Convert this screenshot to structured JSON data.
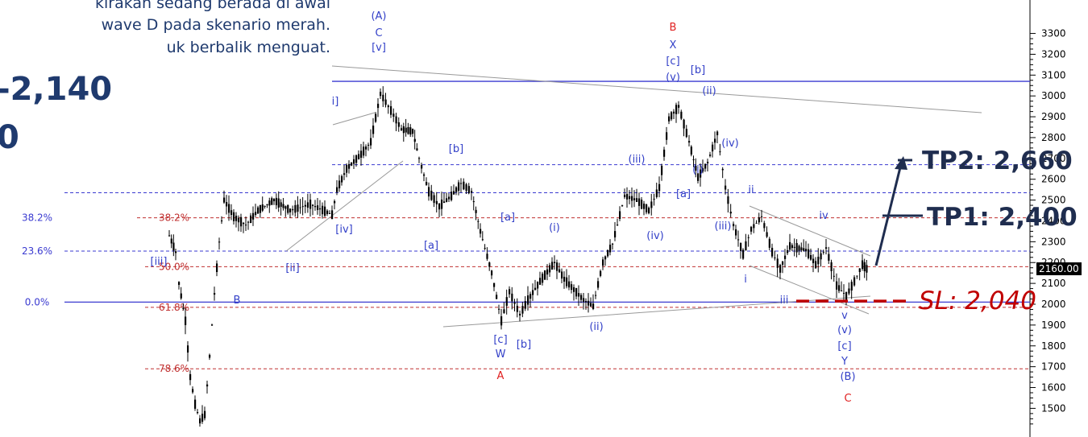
{
  "text": {
    "line1": "kirakan sedang berada di awal",
    "line2": "wave D pada skenario merah.",
    "line3": "uk berbalik menguat.",
    "big1": "-2,140",
    "big2": "0",
    "tp2": "TP2: 2,660",
    "tp1": "TP1: 2,400",
    "sl": "SL: 2,040",
    "price_box": "2160.00"
  },
  "colors": {
    "candles": "#000000",
    "wave_labels": "#3340c8",
    "scenario_red": "#e02020",
    "fib_blue": "#3a3ad0",
    "fib_red": "#c03030",
    "trendline": "#999999",
    "text_navy": "#1f3a6e",
    "stop_loss": "#c00000"
  },
  "chart_data": {
    "type": "candlestick",
    "y_axis": {
      "min": 1440,
      "max": 3390,
      "ticks": [
        1500,
        1600,
        1700,
        1800,
        1900,
        2000,
        2100,
        2200,
        2300,
        2400,
        2500,
        2600,
        2700,
        2800,
        2900,
        3000,
        3100,
        3200,
        3300
      ]
    },
    "last_price": 2160,
    "price_path": [
      [
        210,
        2330
      ],
      [
        218,
        2250
      ],
      [
        222,
        2100
      ],
      [
        230,
        1920
      ],
      [
        236,
        1650
      ],
      [
        242,
        1520
      ],
      [
        248,
        1440
      ],
      [
        254,
        1470
      ],
      [
        260,
        1750
      ],
      [
        266,
        2050
      ],
      [
        272,
        2300
      ],
      [
        278,
        2500
      ],
      [
        290,
        2420
      ],
      [
        305,
        2380
      ],
      [
        320,
        2450
      ],
      [
        340,
        2500
      ],
      [
        360,
        2450
      ],
      [
        385,
        2480
      ],
      [
        412,
        2430
      ],
      [
        418,
        2550
      ],
      [
        430,
        2650
      ],
      [
        448,
        2720
      ],
      [
        460,
        2780
      ],
      [
        472,
        3010
      ],
      [
        485,
        2930
      ],
      [
        498,
        2840
      ],
      [
        512,
        2830
      ],
      [
        520,
        2700
      ],
      [
        532,
        2540
      ],
      [
        545,
        2470
      ],
      [
        560,
        2520
      ],
      [
        572,
        2580
      ],
      [
        585,
        2540
      ],
      [
        596,
        2350
      ],
      [
        610,
        2150
      ],
      [
        622,
        1920
      ],
      [
        632,
        2060
      ],
      [
        645,
        1950
      ],
      [
        655,
        2020
      ],
      [
        670,
        2110
      ],
      [
        688,
        2200
      ],
      [
        700,
        2120
      ],
      [
        712,
        2070
      ],
      [
        724,
        2020
      ],
      [
        736,
        1990
      ],
      [
        748,
        2200
      ],
      [
        760,
        2290
      ],
      [
        775,
        2520
      ],
      [
        790,
        2500
      ],
      [
        805,
        2450
      ],
      [
        818,
        2560
      ],
      [
        830,
        2890
      ],
      [
        842,
        2950
      ],
      [
        855,
        2780
      ],
      [
        866,
        2610
      ],
      [
        878,
        2680
      ],
      [
        890,
        2820
      ],
      [
        900,
        2560
      ],
      [
        910,
        2380
      ],
      [
        922,
        2240
      ],
      [
        932,
        2360
      ],
      [
        945,
        2420
      ],
      [
        958,
        2250
      ],
      [
        968,
        2170
      ],
      [
        980,
        2280
      ],
      [
        1000,
        2260
      ],
      [
        1012,
        2190
      ],
      [
        1025,
        2270
      ],
      [
        1038,
        2090
      ],
      [
        1050,
        2040
      ],
      [
        1060,
        2110
      ],
      [
        1070,
        2190
      ],
      [
        1078,
        2160
      ]
    ],
    "horizontal_levels": [
      {
        "price": 3070,
        "style": "solid",
        "color": "blue"
      },
      {
        "price": 2670,
        "style": "dashed",
        "color": "blue"
      },
      {
        "price": 2535,
        "style": "dashed",
        "color": "blue"
      },
      {
        "price": 2415,
        "style": "dashed",
        "color": "red"
      },
      {
        "price": 2255,
        "style": "dashed",
        "color": "blue"
      },
      {
        "price": 2180,
        "style": "dashed",
        "color": "red"
      },
      {
        "price": 2010,
        "style": "solid",
        "color": "blue"
      },
      {
        "price": 1985,
        "style": "dashed",
        "color": "red"
      },
      {
        "price": 1690,
        "style": "dashed",
        "color": "red"
      }
    ],
    "fib_labels": [
      {
        "text": "38.2%",
        "price": 2415,
        "color": "blue"
      },
      {
        "text": "23.6%",
        "price": 2255,
        "color": "blue"
      },
      {
        "text": "0.0%",
        "price": 2010,
        "color": "blue"
      },
      {
        "text": "38.2%",
        "price": 2415,
        "color": "red"
      },
      {
        "text": "50.0%",
        "price": 2180,
        "color": "red"
      },
      {
        "text": "61.8%",
        "price": 1985,
        "color": "red"
      },
      {
        "text": "78.6%",
        "price": 1690,
        "color": "red"
      }
    ],
    "wave_labels": [
      {
        "text": "(A)",
        "color": "blue"
      },
      {
        "text": "C",
        "color": "blue"
      },
      {
        "text": "[v]",
        "color": "blue"
      },
      {
        "text": "i]",
        "color": "blue"
      },
      {
        "text": "[iv]",
        "color": "blue"
      },
      {
        "text": "[ii]",
        "color": "blue"
      },
      {
        "text": "[iii]",
        "color": "blue"
      },
      {
        "text": "B",
        "color": "blue"
      },
      {
        "text": "[b]",
        "color": "blue"
      },
      {
        "text": "[a]",
        "color": "blue"
      },
      {
        "text": "[a]",
        "color": "blue"
      },
      {
        "text": "(i)",
        "color": "blue"
      },
      {
        "text": "(ii)",
        "color": "blue"
      },
      {
        "text": "[c]",
        "color": "blue"
      },
      {
        "text": "W",
        "color": "blue"
      },
      {
        "text": "[b]",
        "color": "blue"
      },
      {
        "text": "A",
        "color": "red"
      },
      {
        "text": "B",
        "color": "red"
      },
      {
        "text": "X",
        "color": "blue"
      },
      {
        "text": "[c]",
        "color": "blue"
      },
      {
        "text": "(v)",
        "color": "blue"
      },
      {
        "text": "[b]",
        "color": "blue"
      },
      {
        "text": "(ii)",
        "color": "blue"
      },
      {
        "text": "(iii)",
        "color": "blue"
      },
      {
        "text": "(iv)",
        "color": "blue"
      },
      {
        "text": "[a]",
        "color": "blue"
      },
      {
        "text": "(i)",
        "color": "blue"
      },
      {
        "text": "(iv)",
        "color": "blue"
      },
      {
        "text": "(iii)",
        "color": "blue"
      },
      {
        "text": "ii",
        "color": "blue"
      },
      {
        "text": "i",
        "color": "blue"
      },
      {
        "text": "iv",
        "color": "blue"
      },
      {
        "text": "iii",
        "color": "blue"
      },
      {
        "text": "v",
        "color": "blue"
      },
      {
        "text": "(v)",
        "color": "blue"
      },
      {
        "text": "[c]",
        "color": "blue"
      },
      {
        "text": "Y",
        "color": "blue"
      },
      {
        "text": "(B)",
        "color": "blue"
      },
      {
        "text": "C",
        "color": "red"
      }
    ],
    "targets": [
      {
        "label": "TP1: 2,400",
        "price": 2400
      },
      {
        "label": "TP2: 2,660",
        "price": 2660
      },
      {
        "label": "SL: 2,040",
        "price": 2040
      }
    ]
  }
}
